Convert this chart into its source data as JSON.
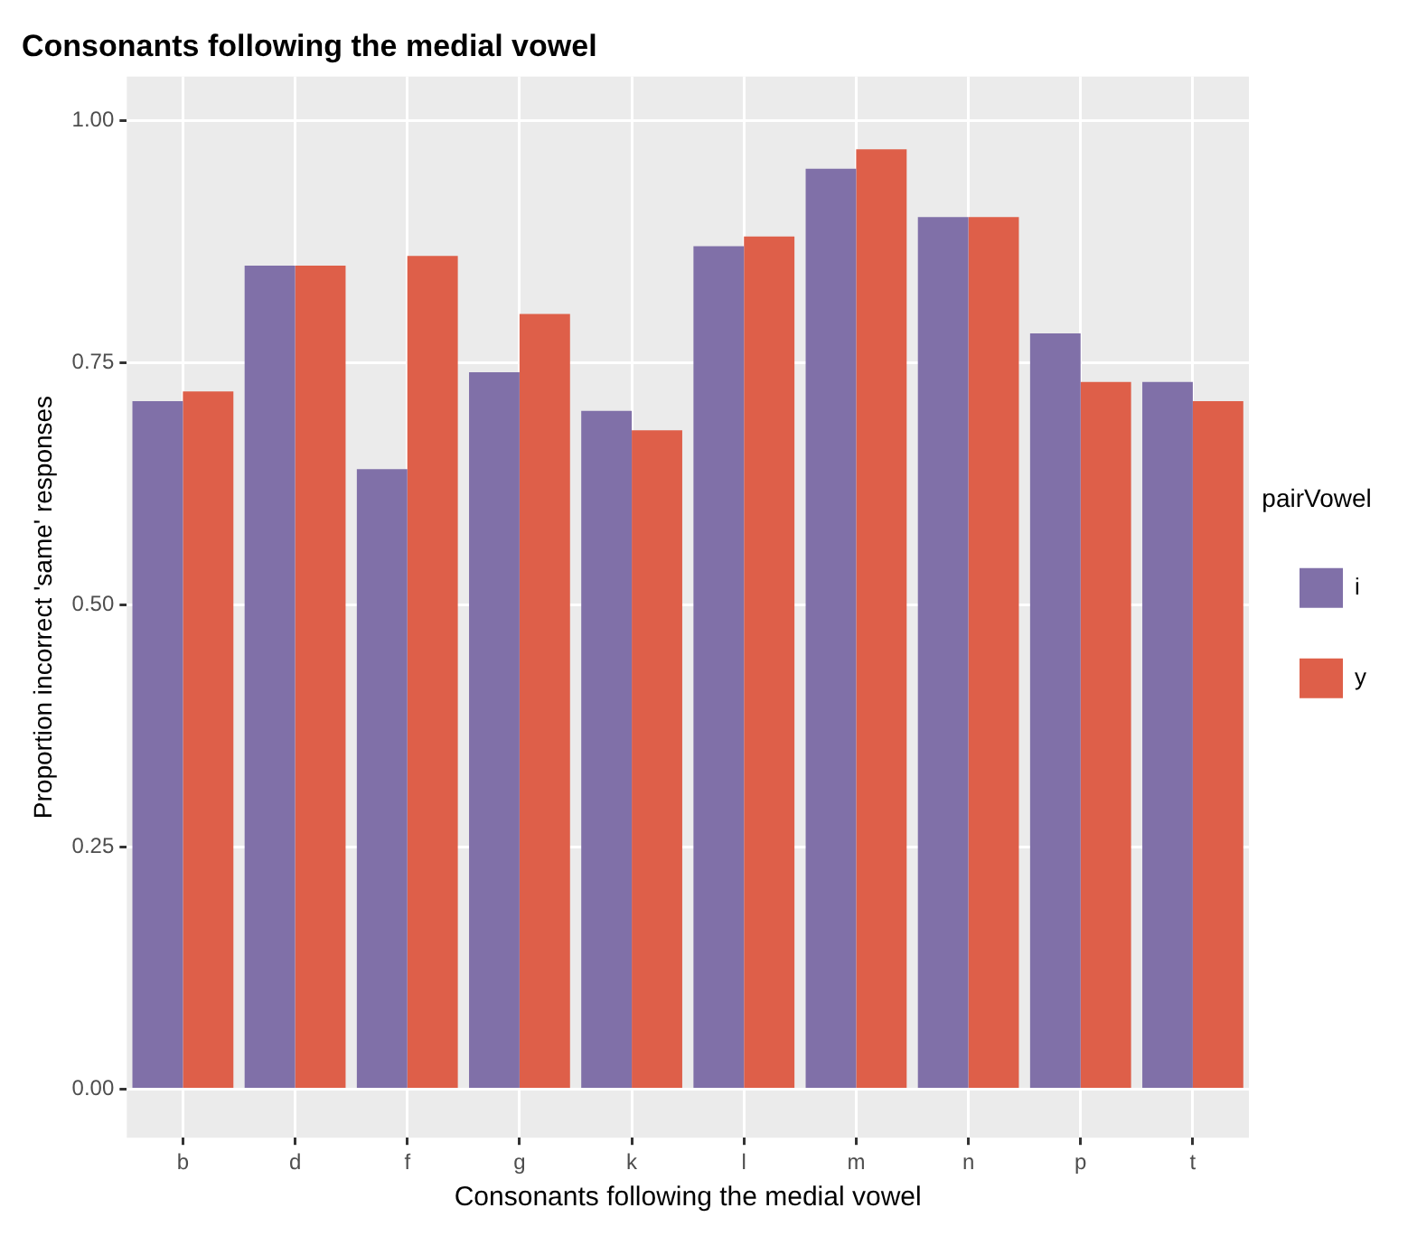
{
  "chart_data": {
    "type": "bar",
    "title": "Consonants following the medial vowel",
    "xlabel": "Consonants following the medial vowel",
    "ylabel": "Proportion incorrect 'same' responses",
    "legend_title": "pairVowel",
    "categories": [
      "b",
      "d",
      "f",
      "g",
      "k",
      "l",
      "m",
      "n",
      "p",
      "t"
    ],
    "series": [
      {
        "name": "i",
        "color": "#8070a8",
        "values": [
          0.71,
          0.85,
          0.64,
          0.74,
          0.7,
          0.87,
          0.95,
          0.9,
          0.78,
          0.73
        ]
      },
      {
        "name": "y",
        "color": "#de5f49",
        "values": [
          0.72,
          0.85,
          0.86,
          0.8,
          0.68,
          0.88,
          0.97,
          0.9,
          0.73,
          0.71
        ]
      }
    ],
    "ylim": [
      -0.05,
      1.045
    ],
    "yticks": [
      {
        "value": 0,
        "label": "0.00"
      },
      {
        "value": 0.25,
        "label": "0.25"
      },
      {
        "value": 0.5,
        "label": "0.50"
      },
      {
        "value": 0.75,
        "label": "0.75"
      },
      {
        "value": 1,
        "label": "1.00"
      }
    ],
    "grid": true,
    "legend": "right"
  }
}
